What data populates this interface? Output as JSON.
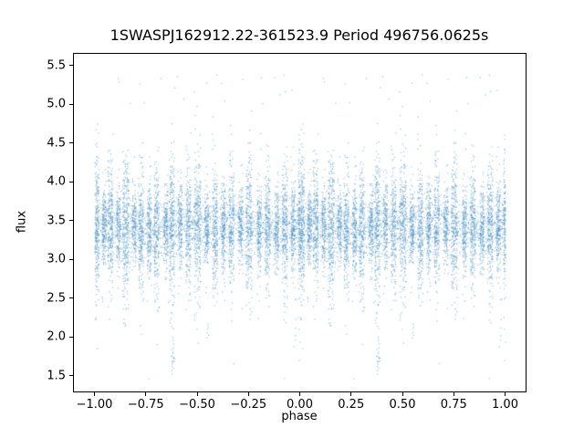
{
  "chart_data": {
    "type": "scatter",
    "title": "1SWASPJ162912.22-361523.9 Period 496756.0625s",
    "xlabel": "phase",
    "ylabel": "flux",
    "xlim": [
      -1.1,
      1.1
    ],
    "ylim": [
      1.3,
      5.65
    ],
    "xtick_values": [
      -1.0,
      -0.75,
      -0.5,
      -0.25,
      0.0,
      0.25,
      0.5,
      0.75,
      1.0
    ],
    "xtick_labels": [
      "−1.00",
      "−0.75",
      "−0.50",
      "−0.25",
      "0.00",
      "0.25",
      "0.50",
      "0.75",
      "1.00"
    ],
    "ytick_values": [
      1.5,
      2.0,
      2.5,
      3.0,
      3.5,
      4.0,
      4.5,
      5.0,
      5.5
    ],
    "ytick_labels": [
      "1.5",
      "2.0",
      "2.5",
      "3.0",
      "3.5",
      "4.0",
      "4.5",
      "5.0",
      "5.5"
    ],
    "point_color": "#4d94c6",
    "point_alpha": 0.55,
    "marker_size_px": 1.2,
    "background_color": "#ffffff",
    "spine_color": "#000000",
    "legend": "none",
    "grid": false,
    "generator": {
      "seed": 1629,
      "fold_duplicate": true,
      "flux_clamp": [
        1.47,
        5.45
      ],
      "base": {
        "n": 1600,
        "flux_mean": 3.42,
        "flux_sigma": 0.2
      },
      "clusters_format": "[phase_center, phase_width, n_points, flux_sigma]",
      "clusters": [
        [
          0.005,
          0.03,
          420,
          0.48
        ],
        [
          0.045,
          0.02,
          200,
          0.28
        ],
        [
          0.075,
          0.025,
          260,
          0.42
        ],
        [
          0.115,
          0.02,
          180,
          0.26
        ],
        [
          0.15,
          0.03,
          300,
          0.5
        ],
        [
          0.19,
          0.02,
          170,
          0.24
        ],
        [
          0.225,
          0.025,
          240,
          0.38
        ],
        [
          0.265,
          0.02,
          200,
          0.3
        ],
        [
          0.3,
          0.025,
          250,
          0.44
        ],
        [
          0.345,
          0.02,
          180,
          0.27
        ],
        [
          0.375,
          0.025,
          280,
          0.5
        ],
        [
          0.415,
          0.02,
          190,
          0.28
        ],
        [
          0.455,
          0.025,
          240,
          0.4
        ],
        [
          0.5,
          0.03,
          290,
          0.46
        ],
        [
          0.545,
          0.02,
          180,
          0.26
        ],
        [
          0.585,
          0.025,
          250,
          0.4
        ],
        [
          0.625,
          0.02,
          190,
          0.3
        ],
        [
          0.665,
          0.025,
          240,
          0.42
        ],
        [
          0.71,
          0.02,
          180,
          0.27
        ],
        [
          0.75,
          0.03,
          280,
          0.45
        ],
        [
          0.8,
          0.02,
          190,
          0.28
        ],
        [
          0.84,
          0.025,
          250,
          0.4
        ],
        [
          0.885,
          0.02,
          180,
          0.27
        ],
        [
          0.925,
          0.025,
          260,
          0.44
        ],
        [
          0.965,
          0.02,
          200,
          0.3
        ]
      ],
      "outlier_clusters_format": "[phase_center, phase_width, n_points, flux_mean, flux_sigma]",
      "outlier_clusters": [
        [
          0.38,
          0.015,
          20,
          1.78,
          0.12
        ],
        [
          0.55,
          0.008,
          6,
          2.05,
          0.1
        ],
        [
          0.975,
          0.012,
          8,
          2.3,
          0.25
        ]
      ]
    }
  }
}
